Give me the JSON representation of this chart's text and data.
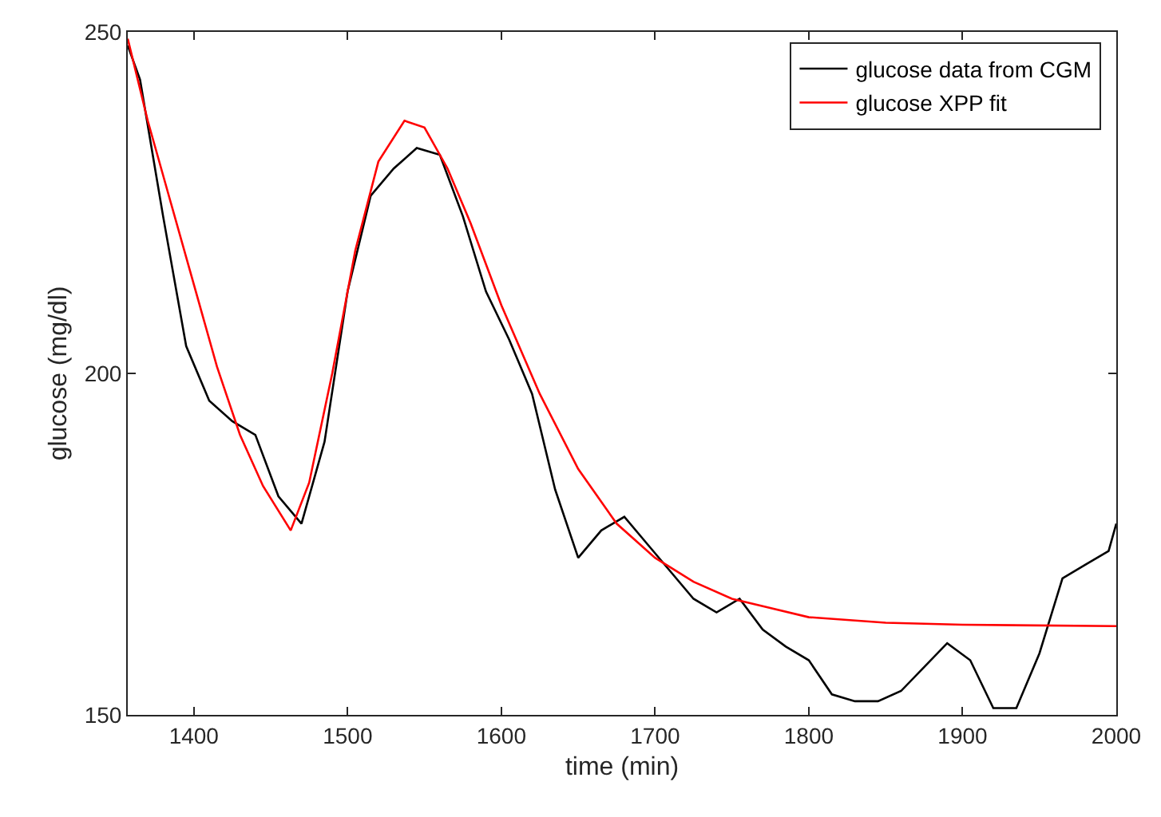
{
  "chart_data": {
    "type": "line",
    "xlabel": "time (min)",
    "ylabel": "glucose (mg/dl)",
    "xlim": [
      1357,
      2000
    ],
    "xticks": [
      1400,
      1500,
      1600,
      1700,
      1800,
      1900,
      2000
    ],
    "ylim": [
      150,
      250
    ],
    "yticks": [
      150,
      200,
      250
    ],
    "legend": "top right",
    "marker": "none",
    "line_style": "solid",
    "series": [
      {
        "name": "glucose data from CGM",
        "color": "#000000",
        "x": [
          1357,
          1365,
          1380,
          1395,
          1410,
          1425,
          1440,
          1455,
          1470,
          1485,
          1500,
          1515,
          1530,
          1545,
          1560,
          1575,
          1590,
          1605,
          1620,
          1635,
          1650,
          1665,
          1680,
          1695,
          1710,
          1725,
          1740,
          1755,
          1770,
          1785,
          1800,
          1815,
          1830,
          1845,
          1860,
          1875,
          1890,
          1905,
          1920,
          1935,
          1950,
          1965,
          1980,
          1995,
          2000
        ],
        "values": [
          248,
          243,
          223,
          204,
          196,
          193,
          191,
          182,
          178,
          190,
          212,
          226,
          230,
          233,
          232,
          223,
          212,
          205,
          197,
          183,
          173,
          177,
          179,
          175,
          171,
          167,
          165,
          167,
          162.5,
          160,
          158,
          153,
          152,
          152,
          153.5,
          157,
          160.5,
          158,
          151,
          151,
          159,
          170,
          172,
          174,
          178
        ]
      },
      {
        "name": "glucose XPP fit",
        "color": "#ff0000",
        "x": [
          1357,
          1370,
          1385,
          1400,
          1415,
          1430,
          1445,
          1463,
          1475,
          1490,
          1505,
          1520,
          1537,
          1550,
          1565,
          1580,
          1600,
          1625,
          1650,
          1675,
          1700,
          1725,
          1750,
          1800,
          1850,
          1900,
          2000
        ],
        "values": [
          249,
          237,
          225,
          213,
          201,
          191,
          183.5,
          177,
          184,
          200,
          218,
          231,
          237,
          236,
          230,
          222,
          210,
          197,
          186,
          178,
          173,
          169.5,
          167,
          164.3,
          163.5,
          163.2,
          163
        ]
      }
    ]
  }
}
